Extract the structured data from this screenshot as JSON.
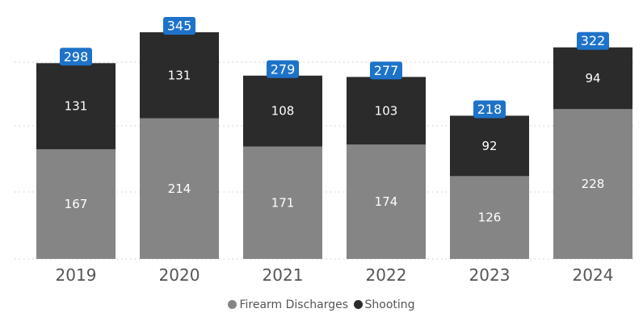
{
  "colors": {
    "firearm_discharges": "#858585",
    "shooting": "#2b2b2b",
    "total_badge": "#1e73c9",
    "gridline": "#d4d4d4",
    "axis_text": "#555555"
  },
  "chart_data": {
    "type": "bar",
    "stacked": true,
    "title": "",
    "xlabel": "",
    "ylabel": "",
    "categories": [
      "2019",
      "2020",
      "2021",
      "2022",
      "2023",
      "2024"
    ],
    "series": [
      {
        "name": "Firearm Discharges",
        "values": [
          167,
          214,
          171,
          174,
          126,
          228
        ]
      },
      {
        "name": "Shooting",
        "values": [
          131,
          131,
          108,
          103,
          92,
          94
        ]
      }
    ],
    "totals": [
      298,
      345,
      279,
      277,
      218,
      322
    ],
    "ylim": [
      0,
      345
    ],
    "grid": true,
    "legend_position": "bottom-center"
  }
}
